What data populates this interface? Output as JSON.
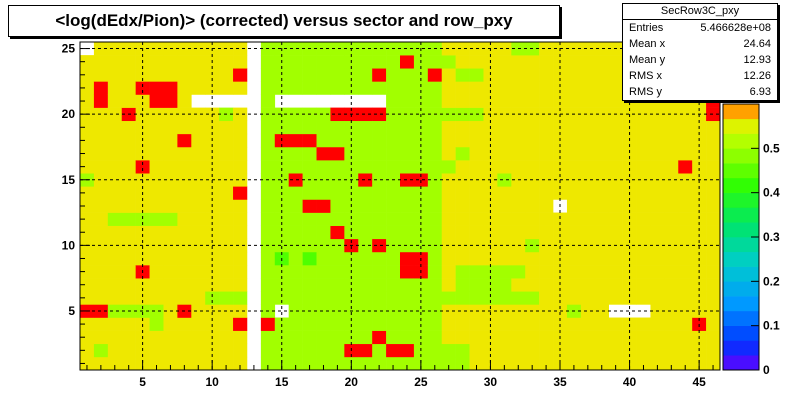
{
  "chart_data": {
    "type": "heatmap",
    "title": "<log(dEdx/Pion)> (corrected) versus sector and row_pxy",
    "xlim": [
      0.5,
      46.5
    ],
    "ylim": [
      0.5,
      25.5
    ],
    "x_ticks": [
      5,
      10,
      15,
      20,
      25,
      30,
      35,
      40,
      45
    ],
    "y_ticks": [
      5,
      10,
      15,
      20,
      25
    ],
    "z_range": [
      0,
      0.6
    ],
    "z_ticks": [
      "0",
      "0.1",
      "0.2",
      "0.3",
      "0.4",
      "0.5"
    ],
    "grid": true,
    "base_value": 0.56,
    "empty_cells": [
      [
        1,
        25
      ],
      [
        9,
        21
      ],
      [
        10,
        21
      ],
      [
        11,
        21
      ],
      [
        12,
        21
      ],
      [
        13,
        21
      ],
      [
        15,
        21
      ],
      [
        16,
        21
      ],
      [
        17,
        21
      ],
      [
        18,
        21
      ],
      [
        19,
        21
      ],
      [
        20,
        21
      ],
      [
        21,
        21
      ],
      [
        22,
        21
      ],
      [
        35,
        13
      ],
      [
        15,
        5
      ],
      [
        39,
        5
      ],
      [
        40,
        5
      ],
      [
        41,
        5
      ],
      [
        13,
        1
      ],
      [
        13,
        2
      ],
      [
        13,
        3
      ],
      [
        13,
        4
      ],
      [
        13,
        5
      ],
      [
        13,
        6
      ],
      [
        13,
        7
      ],
      [
        13,
        8
      ],
      [
        13,
        9
      ],
      [
        13,
        10
      ],
      [
        13,
        11
      ],
      [
        13,
        12
      ],
      [
        13,
        13
      ],
      [
        13,
        14
      ],
      [
        13,
        15
      ],
      [
        13,
        16
      ],
      [
        13,
        17
      ],
      [
        13,
        18
      ],
      [
        13,
        19
      ],
      [
        13,
        20
      ],
      [
        13,
        21
      ],
      [
        13,
        22
      ],
      [
        13,
        23
      ],
      [
        13,
        24
      ],
      [
        13,
        25
      ]
    ],
    "green_block": {
      "x": [
        14,
        26
      ],
      "y": [
        1,
        25
      ],
      "value": 0.5
    },
    "cells": [
      {
        "x": 5,
        "y": 8,
        "value": 0.95
      },
      {
        "x": 2,
        "y": 5,
        "value": 0.66
      },
      {
        "x": 1,
        "y": 5,
        "value": 0.6
      },
      {
        "x": 2,
        "y": 21,
        "value": 0.6
      },
      {
        "x": 2,
        "y": 22,
        "value": 0.6
      },
      {
        "x": 5,
        "y": 22,
        "value": 0.6
      },
      {
        "x": 6,
        "y": 22,
        "value": 0.6
      },
      {
        "x": 7,
        "y": 22,
        "value": 0.6
      },
      {
        "x": 6,
        "y": 21,
        "value": 0.6
      },
      {
        "x": 7,
        "y": 21,
        "value": 0.6
      },
      {
        "x": 4,
        "y": 20,
        "value": 0.6
      },
      {
        "x": 8,
        "y": 18,
        "value": 0.6
      },
      {
        "x": 5,
        "y": 16,
        "value": 0.6
      },
      {
        "x": 12,
        "y": 14,
        "value": 0.6
      },
      {
        "x": 12,
        "y": 4,
        "value": 0.6
      },
      {
        "x": 8,
        "y": 5,
        "value": 0.6
      },
      {
        "x": 45,
        "y": 4,
        "value": 0.6
      },
      {
        "x": 44,
        "y": 16,
        "value": 0.6
      },
      {
        "x": 12,
        "y": 23,
        "value": 0.6
      },
      {
        "x": 46,
        "y": 20,
        "value": 0.6
      },
      {
        "x": 46,
        "y": 21,
        "value": 0.6
      },
      {
        "x": 1,
        "y": 15,
        "value": 0.5
      },
      {
        "x": 3,
        "y": 12,
        "value": 0.5
      },
      {
        "x": 4,
        "y": 12,
        "value": 0.5
      },
      {
        "x": 5,
        "y": 12,
        "value": 0.5
      },
      {
        "x": 6,
        "y": 12,
        "value": 0.5
      },
      {
        "x": 7,
        "y": 12,
        "value": 0.5
      },
      {
        "x": 3,
        "y": 5,
        "value": 0.5
      },
      {
        "x": 4,
        "y": 5,
        "value": 0.5
      },
      {
        "x": 5,
        "y": 5,
        "value": 0.5
      },
      {
        "x": 6,
        "y": 5,
        "value": 0.5
      },
      {
        "x": 10,
        "y": 6,
        "value": 0.5
      },
      {
        "x": 11,
        "y": 6,
        "value": 0.5
      },
      {
        "x": 12,
        "y": 6,
        "value": 0.5
      },
      {
        "x": 6,
        "y": 4,
        "value": 0.5
      },
      {
        "x": 2,
        "y": 2,
        "value": 0.5
      },
      {
        "x": 11,
        "y": 20,
        "value": 0.5
      },
      {
        "x": 28,
        "y": 7,
        "value": 0.5
      },
      {
        "x": 29,
        "y": 7,
        "value": 0.5
      },
      {
        "x": 30,
        "y": 7,
        "value": 0.5
      },
      {
        "x": 31,
        "y": 7,
        "value": 0.5
      },
      {
        "x": 27,
        "y": 6,
        "value": 0.5
      },
      {
        "x": 28,
        "y": 6,
        "value": 0.5
      },
      {
        "x": 29,
        "y": 6,
        "value": 0.5
      },
      {
        "x": 30,
        "y": 6,
        "value": 0.5
      },
      {
        "x": 31,
        "y": 6,
        "value": 0.5
      },
      {
        "x": 32,
        "y": 6,
        "value": 0.5
      },
      {
        "x": 28,
        "y": 8,
        "value": 0.5
      },
      {
        "x": 29,
        "y": 8,
        "value": 0.5
      },
      {
        "x": 30,
        "y": 8,
        "value": 0.5
      },
      {
        "x": 31,
        "y": 8,
        "value": 0.5
      },
      {
        "x": 32,
        "y": 8,
        "value": 0.5
      },
      {
        "x": 33,
        "y": 6,
        "value": 0.5
      },
      {
        "x": 27,
        "y": 16,
        "value": 0.5
      },
      {
        "x": 28,
        "y": 17,
        "value": 0.5
      },
      {
        "x": 27,
        "y": 20,
        "value": 0.5
      },
      {
        "x": 28,
        "y": 20,
        "value": 0.5
      },
      {
        "x": 29,
        "y": 20,
        "value": 0.5
      },
      {
        "x": 27,
        "y": 1,
        "value": 0.5
      },
      {
        "x": 28,
        "y": 1,
        "value": 0.5
      },
      {
        "x": 27,
        "y": 2,
        "value": 0.5
      },
      {
        "x": 28,
        "y": 2,
        "value": 0.5
      },
      {
        "x": 31,
        "y": 15,
        "value": 0.5
      },
      {
        "x": 33,
        "y": 10,
        "value": 0.5
      },
      {
        "x": 32,
        "y": 25,
        "value": 0.5
      },
      {
        "x": 33,
        "y": 25,
        "value": 0.5
      },
      {
        "x": 28,
        "y": 23,
        "value": 0.5
      },
      {
        "x": 29,
        "y": 23,
        "value": 0.5
      },
      {
        "x": 27,
        "y": 24,
        "value": 0.5
      },
      {
        "x": 36,
        "y": 5,
        "value": 0.5
      },
      {
        "x": 26,
        "y": 5,
        "value": 0.5
      },
      {
        "x": 15,
        "y": 9,
        "value": 0.44
      },
      {
        "x": 17,
        "y": 9,
        "value": 0.44
      },
      {
        "x": 24,
        "y": 24,
        "value": 0.6
      },
      {
        "x": 26,
        "y": 23,
        "value": 0.6
      },
      {
        "x": 22,
        "y": 23,
        "value": 0.6
      },
      {
        "x": 18,
        "y": 17,
        "value": 0.6
      },
      {
        "x": 19,
        "y": 17,
        "value": 0.6
      },
      {
        "x": 15,
        "y": 18,
        "value": 0.6
      },
      {
        "x": 16,
        "y": 18,
        "value": 0.6
      },
      {
        "x": 17,
        "y": 18,
        "value": 0.6
      },
      {
        "x": 16,
        "y": 15,
        "value": 0.6
      },
      {
        "x": 21,
        "y": 15,
        "value": 0.6
      },
      {
        "x": 24,
        "y": 15,
        "value": 0.6
      },
      {
        "x": 25,
        "y": 15,
        "value": 0.6
      },
      {
        "x": 24,
        "y": 9,
        "value": 0.6
      },
      {
        "x": 25,
        "y": 9,
        "value": 0.6
      },
      {
        "x": 24,
        "y": 8,
        "value": 0.6
      },
      {
        "x": 25,
        "y": 8,
        "value": 0.6
      },
      {
        "x": 14,
        "y": 4,
        "value": 0.6
      },
      {
        "x": 22,
        "y": 3,
        "value": 0.6
      },
      {
        "x": 20,
        "y": 2,
        "value": 0.6
      },
      {
        "x": 21,
        "y": 2,
        "value": 0.6
      },
      {
        "x": 23,
        "y": 2,
        "value": 0.6
      },
      {
        "x": 24,
        "y": 2,
        "value": 0.6
      },
      {
        "x": 20,
        "y": 10,
        "value": 0.6
      },
      {
        "x": 22,
        "y": 10,
        "value": 0.6
      },
      {
        "x": 19,
        "y": 11,
        "value": 0.6
      },
      {
        "x": 17,
        "y": 13,
        "value": 0.6
      },
      {
        "x": 18,
        "y": 13,
        "value": 0.6
      },
      {
        "x": 19,
        "y": 20,
        "value": 0.6
      },
      {
        "x": 20,
        "y": 20,
        "value": 0.6
      },
      {
        "x": 21,
        "y": 20,
        "value": 0.6
      },
      {
        "x": 22,
        "y": 20,
        "value": 0.6
      }
    ]
  },
  "stats": {
    "title": "SecRow3C_pxy",
    "entries_label": "Entries",
    "entries_value": "5.466628e+08",
    "meanx_label": "Mean x",
    "meanx_value": "24.64",
    "meany_label": "Mean y",
    "meany_value": "12.93",
    "rmsx_label": "RMS x",
    "rmsx_value": "12.26",
    "rmsy_label": "RMS y",
    "rmsy_value": "6.93"
  }
}
